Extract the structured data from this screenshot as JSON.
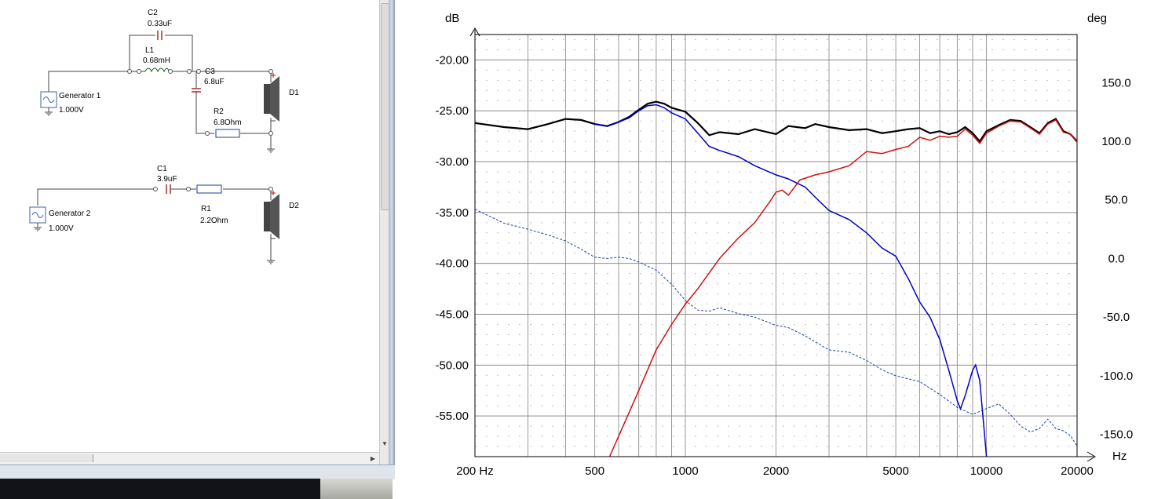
{
  "schematic": {
    "components": [
      {
        "id": "C2",
        "value": "0.33uF"
      },
      {
        "id": "L1",
        "value": "0.68mH"
      },
      {
        "id": "C3",
        "value": "6.8uF"
      },
      {
        "id": "R2",
        "value": "6.8Ohm"
      },
      {
        "id": "D1",
        "value": ""
      },
      {
        "id": "Generator 1",
        "value": "1.000V"
      },
      {
        "id": "C1",
        "value": "3.9uF"
      },
      {
        "id": "R1",
        "value": "2.2Ohm"
      },
      {
        "id": "D2",
        "value": ""
      },
      {
        "id": "Generator 2",
        "value": "1.000V"
      }
    ]
  },
  "chart": {
    "left_unit": "dB",
    "right_unit": "deg",
    "x_unit": "Hz",
    "y_ticks": [
      "-20.00",
      "-25.00",
      "-30.00",
      "-35.00",
      "-40.00",
      "-45.00",
      "-50.00",
      "-55.00"
    ],
    "y2_ticks": [
      "150.0",
      "100.0",
      "50.0",
      "0.0",
      "-50.0",
      "-100.0",
      "-150.0"
    ],
    "x_ticks": [
      "200 Hz",
      "500",
      "1000",
      "2000",
      "5000",
      "10000",
      "20000"
    ]
  },
  "chart_data": {
    "type": "line",
    "xscale": "log",
    "xlim": [
      200,
      20000
    ],
    "ylim": [
      -59,
      -17.5
    ],
    "y2lim": [
      -169,
      191
    ],
    "ylabel": "dB",
    "y2label": "deg",
    "xlabel": "Hz",
    "grid": true,
    "series": [
      {
        "color": "#000000",
        "axis": "left",
        "points": [
          [
            200,
            -26.2
          ],
          [
            250,
            -26.6
          ],
          [
            300,
            -26.8
          ],
          [
            350,
            -26.3
          ],
          [
            400,
            -25.8
          ],
          [
            450,
            -25.9
          ],
          [
            500,
            -26.3
          ],
          [
            550,
            -26.5
          ],
          [
            600,
            -26.1
          ],
          [
            650,
            -25.6
          ],
          [
            700,
            -24.9
          ],
          [
            750,
            -24.3
          ],
          [
            800,
            -24.1
          ],
          [
            850,
            -24.3
          ],
          [
            900,
            -24.7
          ],
          [
            1000,
            -25.1
          ],
          [
            1100,
            -26.2
          ],
          [
            1200,
            -27.4
          ],
          [
            1300,
            -27.1
          ],
          [
            1500,
            -27.3
          ],
          [
            1700,
            -26.8
          ],
          [
            2000,
            -27.3
          ],
          [
            2200,
            -26.5
          ],
          [
            2500,
            -26.7
          ],
          [
            2700,
            -26.3
          ],
          [
            3000,
            -26.6
          ],
          [
            3500,
            -26.9
          ],
          [
            4000,
            -26.8
          ],
          [
            4500,
            -27.2
          ],
          [
            5000,
            -27.0
          ],
          [
            5500,
            -26.8
          ],
          [
            6000,
            -26.7
          ],
          [
            6500,
            -27.2
          ],
          [
            7000,
            -27.0
          ],
          [
            7500,
            -27.3
          ],
          [
            8000,
            -27.1
          ],
          [
            8500,
            -26.6
          ],
          [
            9000,
            -27.2
          ],
          [
            9500,
            -28.0
          ],
          [
            10000,
            -27.0
          ],
          [
            11000,
            -26.4
          ],
          [
            12000,
            -25.9
          ],
          [
            13000,
            -26.0
          ],
          [
            14000,
            -26.6
          ],
          [
            15000,
            -27.2
          ],
          [
            16000,
            -26.2
          ],
          [
            17000,
            -25.8
          ],
          [
            18000,
            -27.0
          ],
          [
            19000,
            -27.3
          ],
          [
            20000,
            -28.0
          ]
        ]
      },
      {
        "color": "#0000cc",
        "axis": "left",
        "points": [
          [
            500,
            -26.3
          ],
          [
            550,
            -26.5
          ],
          [
            600,
            -26.1
          ],
          [
            650,
            -25.7
          ],
          [
            700,
            -25.0
          ],
          [
            750,
            -24.5
          ],
          [
            800,
            -24.4
          ],
          [
            850,
            -24.7
          ],
          [
            900,
            -25.2
          ],
          [
            1000,
            -25.8
          ],
          [
            1100,
            -27.2
          ],
          [
            1200,
            -28.5
          ],
          [
            1300,
            -28.9
          ],
          [
            1500,
            -29.5
          ],
          [
            1700,
            -30.4
          ],
          [
            2000,
            -31.3
          ],
          [
            2200,
            -31.7
          ],
          [
            2500,
            -32.5
          ],
          [
            2700,
            -33.5
          ],
          [
            3000,
            -34.8
          ],
          [
            3500,
            -35.7
          ],
          [
            4000,
            -37.0
          ],
          [
            4500,
            -38.5
          ],
          [
            5000,
            -39.3
          ],
          [
            5500,
            -41.5
          ],
          [
            6000,
            -43.8
          ],
          [
            6500,
            -45.3
          ],
          [
            7000,
            -47.5
          ],
          [
            7500,
            -50.5
          ],
          [
            8000,
            -53.5
          ],
          [
            8200,
            -54.3
          ],
          [
            8500,
            -53.0
          ],
          [
            9000,
            -50.5
          ],
          [
            9200,
            -50.0
          ],
          [
            9500,
            -51.5
          ],
          [
            9800,
            -56.0
          ],
          [
            10000,
            -59.0
          ]
        ]
      },
      {
        "color": "#d01010",
        "axis": "left",
        "points": [
          [
            560,
            -59.0
          ],
          [
            600,
            -57.0
          ],
          [
            700,
            -52.5
          ],
          [
            800,
            -48.5
          ],
          [
            900,
            -46.0
          ],
          [
            1000,
            -44.0
          ],
          [
            1100,
            -42.5
          ],
          [
            1300,
            -39.5
          ],
          [
            1500,
            -37.5
          ],
          [
            1700,
            -36.0
          ],
          [
            1900,
            -34.0
          ],
          [
            2000,
            -33.0
          ],
          [
            2100,
            -32.8
          ],
          [
            2200,
            -33.3
          ],
          [
            2400,
            -31.8
          ],
          [
            2700,
            -31.3
          ],
          [
            3000,
            -31.0
          ],
          [
            3500,
            -30.4
          ],
          [
            4000,
            -29.0
          ],
          [
            4500,
            -29.2
          ],
          [
            5000,
            -28.8
          ],
          [
            5500,
            -28.5
          ],
          [
            6000,
            -27.6
          ],
          [
            6500,
            -27.9
          ],
          [
            7000,
            -27.5
          ],
          [
            7500,
            -27.6
          ],
          [
            8000,
            -27.5
          ],
          [
            8500,
            -26.8
          ],
          [
            9000,
            -27.4
          ],
          [
            9500,
            -28.2
          ],
          [
            10000,
            -27.2
          ],
          [
            11000,
            -26.5
          ],
          [
            12000,
            -26.0
          ],
          [
            13000,
            -26.1
          ],
          [
            14000,
            -26.7
          ],
          [
            15000,
            -27.3
          ],
          [
            16000,
            -26.3
          ],
          [
            17000,
            -25.9
          ],
          [
            18000,
            -27.1
          ],
          [
            19000,
            -27.3
          ],
          [
            20000,
            -28.1
          ]
        ]
      },
      {
        "color": "#1a3fb0",
        "axis": "right",
        "dashed": true,
        "points": [
          [
            200,
            42
          ],
          [
            250,
            30
          ],
          [
            300,
            25
          ],
          [
            350,
            20
          ],
          [
            400,
            15
          ],
          [
            450,
            8
          ],
          [
            500,
            1
          ],
          [
            550,
            0
          ],
          [
            600,
            1
          ],
          [
            650,
            0
          ],
          [
            700,
            -3
          ],
          [
            800,
            -10
          ],
          [
            900,
            -22
          ],
          [
            1000,
            -36
          ],
          [
            1100,
            -44
          ],
          [
            1200,
            -45
          ],
          [
            1300,
            -42
          ],
          [
            1500,
            -47
          ],
          [
            1700,
            -50
          ],
          [
            2000,
            -57
          ],
          [
            2200,
            -59
          ],
          [
            2500,
            -66
          ],
          [
            3000,
            -78
          ],
          [
            3500,
            -80
          ],
          [
            4000,
            -87
          ],
          [
            4500,
            -95
          ],
          [
            5000,
            -100
          ],
          [
            6000,
            -105
          ],
          [
            7000,
            -116
          ],
          [
            8000,
            -127
          ],
          [
            9000,
            -133
          ],
          [
            10000,
            -128
          ],
          [
            11000,
            -124
          ],
          [
            12000,
            -133
          ],
          [
            13000,
            -143
          ],
          [
            14000,
            -148
          ],
          [
            15000,
            -145
          ],
          [
            16000,
            -137
          ],
          [
            17000,
            -145
          ],
          [
            18000,
            -147
          ],
          [
            19000,
            -151
          ],
          [
            20000,
            -160
          ]
        ]
      }
    ]
  }
}
